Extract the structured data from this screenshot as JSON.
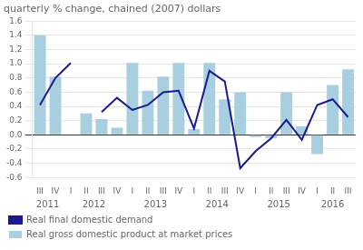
{
  "chart_data": {
    "type": "bar",
    "title": "quarterly % change, chained (2007) dollars",
    "categories": [
      "III",
      "IV",
      "I",
      "II",
      "III",
      "IV",
      "I",
      "II",
      "III",
      "IV",
      "I",
      "II",
      "III",
      "IV",
      "I",
      "II",
      "III",
      "IV",
      "I",
      "II",
      "III"
    ],
    "category_groups": [
      {
        "label": "2011",
        "start": 0,
        "end": 1
      },
      {
        "label": "2012",
        "start": 2,
        "end": 5
      },
      {
        "label": "2013",
        "start": 6,
        "end": 9
      },
      {
        "label": "2014",
        "start": 10,
        "end": 13
      },
      {
        "label": "2015",
        "start": 14,
        "end": 17
      },
      {
        "label": "2016",
        "start": 18,
        "end": 20
      }
    ],
    "series": [
      {
        "name": "Real gross domestic product at market prices",
        "type": "bar",
        "color": "#a8cfe0",
        "values": [
          1.4,
          0.82,
          0.0,
          0.3,
          0.22,
          0.1,
          1.01,
          0.62,
          0.82,
          1.01,
          0.08,
          1.01,
          0.5,
          0.6,
          -0.03,
          -0.05,
          0.6,
          0.12,
          -0.27,
          0.7,
          0.92
        ]
      },
      {
        "name": "Real final domestic demand",
        "type": "line",
        "color": "#1a1a8c",
        "values": [
          0.42,
          0.8,
          1.01,
          null,
          0.32,
          0.52,
          0.35,
          0.42,
          0.6,
          0.62,
          0.09,
          0.9,
          0.75,
          -0.47,
          -0.23,
          -0.05,
          0.21,
          -0.07,
          0.42,
          0.5,
          0.25
        ]
      }
    ],
    "ylim": [
      -0.6,
      1.6
    ],
    "yticks": [
      -0.6,
      -0.4,
      -0.2,
      {
        "value": 0.0,
        "label": "0.0"
      },
      0.2,
      0.4,
      0.6,
      0.8,
      {
        "value": 1.0,
        "label": "1.0"
      },
      1.2,
      1.4,
      1.6
    ],
    "grid": true,
    "legend": "bottom"
  }
}
